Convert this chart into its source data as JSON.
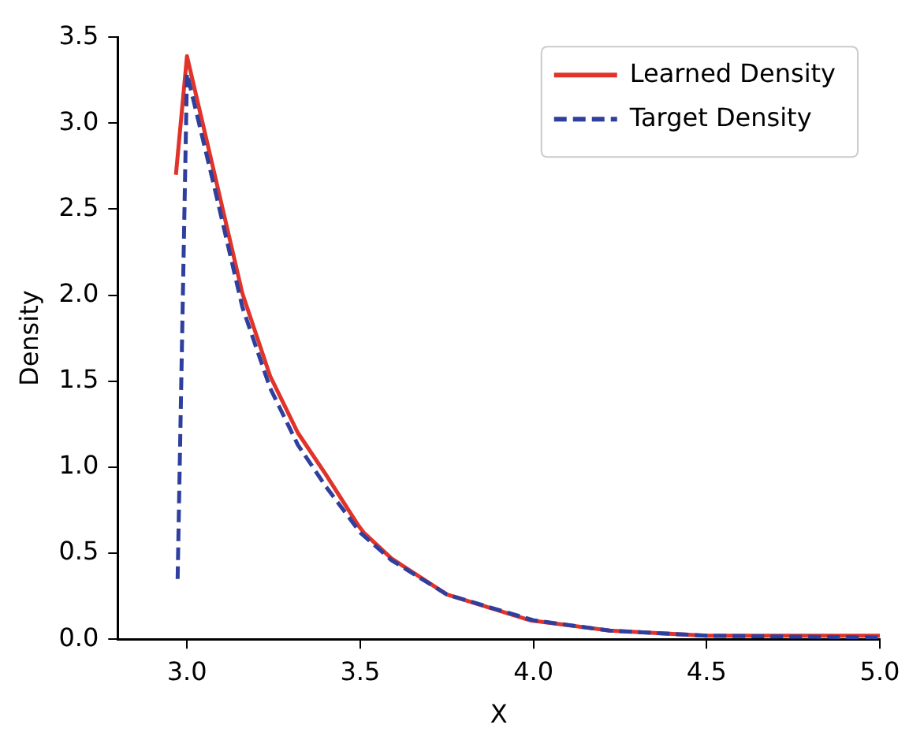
{
  "chart_data": {
    "type": "line",
    "xlabel": "X",
    "ylabel": "Density",
    "xlim": [
      2.8,
      5.0
    ],
    "ylim": [
      0,
      3.5
    ],
    "xticks": [
      {
        "value": 3.0,
        "label": "3.0"
      },
      {
        "value": 3.5,
        "label": "3.5"
      },
      {
        "value": 4.0,
        "label": "4.0"
      },
      {
        "value": 4.5,
        "label": "4.5"
      },
      {
        "value": 5.0,
        "label": "5.0"
      }
    ],
    "yticks": [
      {
        "value": 0,
        "label": "0.0"
      },
      {
        "value": 0.5,
        "label": "0.5"
      },
      {
        "value": 1.0,
        "label": "1.0"
      },
      {
        "value": 1.5,
        "label": "1.5"
      },
      {
        "value": 2.0,
        "label": "2.0"
      },
      {
        "value": 2.5,
        "label": "2.5"
      },
      {
        "value": 3.0,
        "label": "3.0"
      },
      {
        "value": 3.5,
        "label": "3.5"
      }
    ],
    "grid": false,
    "legend": "top right",
    "marker": "none",
    "series": [
      {
        "name": "Learned Density",
        "color": "#e0332a",
        "line_style": "solid",
        "x": [
          2.968,
          3.0,
          3.08,
          3.16,
          3.24,
          3.32,
          3.4,
          3.495,
          3.51,
          3.59,
          3.75,
          3.99,
          4.22,
          4.5,
          5.0
        ],
        "values": [
          2.7,
          3.39,
          2.7,
          2.01,
          1.53,
          1.2,
          0.96,
          0.66,
          0.62,
          0.47,
          0.26,
          0.11,
          0.05,
          0.02,
          0.02
        ]
      },
      {
        "name": "Target Density",
        "color": "#2f3f9e",
        "line_style": "dashed",
        "x": [
          2.973,
          3.0,
          3.08,
          3.16,
          3.24,
          3.32,
          3.4,
          3.5,
          3.59,
          3.75,
          4.0,
          4.22,
          4.5,
          5.0
        ],
        "values": [
          0.35,
          3.29,
          2.62,
          1.93,
          1.46,
          1.13,
          0.89,
          0.62,
          0.46,
          0.26,
          0.11,
          0.05,
          0.02,
          0.01
        ]
      }
    ]
  }
}
